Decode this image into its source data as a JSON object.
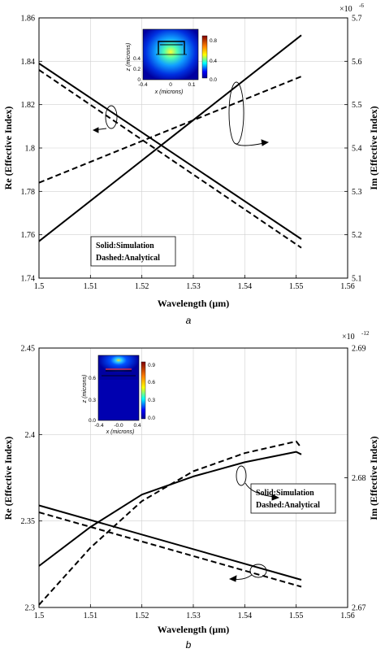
{
  "chart_data": [
    {
      "type": "line",
      "panel_caption": "a",
      "xlabel": "Wavelength (μm)",
      "ylabel": "Re (Effective Index)",
      "y2label": "Im (Effective Index)",
      "y2_exponent_base": "×10",
      "y2_exponent": "-6",
      "xlim": [
        1.5,
        1.56
      ],
      "ylim": [
        1.74,
        1.86
      ],
      "y2lim": [
        5.1,
        5.7
      ],
      "xticks": [
        "1.5",
        "1.51",
        "1.52",
        "1.53",
        "1.54",
        "1.55",
        "1.56"
      ],
      "yticks": [
        "1.74",
        "1.76",
        "1.78",
        "1.8",
        "1.82",
        "1.84",
        "1.86"
      ],
      "y2ticks": [
        "5.1",
        "5.2",
        "5.3",
        "5.4",
        "5.5",
        "5.6",
        "5.7"
      ],
      "grid": true,
      "legend": {
        "placement": "lower-left",
        "lines": [
          "Solid:Simulation",
          "Dashed:Analytical"
        ]
      },
      "series": [
        {
          "style": "solid",
          "axis": "left",
          "x": [
            1.5,
            1.551
          ],
          "y": [
            1.839,
            1.758
          ]
        },
        {
          "style": "dashed",
          "axis": "left",
          "x": [
            1.5,
            1.551
          ],
          "y": [
            1.836,
            1.754
          ]
        },
        {
          "style": "solid",
          "axis": "right",
          "x": [
            1.5,
            1.551
          ],
          "y": [
            5.185,
            5.66
          ]
        },
        {
          "style": "dashed",
          "axis": "right",
          "x": [
            1.5,
            1.551
          ],
          "y": [
            5.32,
            5.565
          ]
        }
      ],
      "inset": {
        "placement": "top-center",
        "xlabel": "x (microns)",
        "ylabel": "z (microns)",
        "xticks": [
          "-0.4",
          "0",
          "0.1"
        ],
        "yticks": [
          "0",
          "0.2",
          "0.4"
        ],
        "colorbar_ticks": [
          "0.8",
          "0.4",
          "0.0"
        ]
      }
    },
    {
      "type": "line",
      "panel_caption": "b",
      "xlabel": "Wavelength (μm)",
      "ylabel": "Re (Effective Index)",
      "y2label": "Im (Effective Index)",
      "y2_exponent_base": "×10",
      "y2_exponent": "-12",
      "xlim": [
        1.5,
        1.56
      ],
      "ylim": [
        2.3,
        2.45
      ],
      "y2lim": [
        2.67,
        2.69
      ],
      "xticks": [
        "1.5",
        "1.51",
        "1.52",
        "1.53",
        "1.54",
        "1.55",
        "1.56"
      ],
      "yticks": [
        "2.3",
        "2.35",
        "2.4",
        "2.45"
      ],
      "y2ticks": [
        "2.67",
        "2.68",
        "2.69"
      ],
      "grid": true,
      "legend": {
        "placement": "center-right",
        "lines": [
          "Solid:Simulation",
          "Dashed:Analytical"
        ]
      },
      "series": [
        {
          "style": "solid",
          "axis": "left",
          "x": [
            1.5,
            1.551
          ],
          "y": [
            2.359,
            2.316
          ]
        },
        {
          "style": "dashed",
          "axis": "left",
          "x": [
            1.5,
            1.551
          ],
          "y": [
            2.355,
            2.312
          ]
        },
        {
          "style": "solid",
          "axis": "right",
          "x": [
            1.5,
            1.51,
            1.52,
            1.53,
            1.54,
            1.55,
            1.551
          ],
          "y": [
            2.6732,
            2.6762,
            2.6787,
            2.6801,
            2.6812,
            2.682,
            2.6818
          ]
        },
        {
          "style": "dashed",
          "axis": "right",
          "x": [
            1.5,
            1.51,
            1.52,
            1.53,
            1.54,
            1.55,
            1.551
          ],
          "y": [
            2.6702,
            2.6746,
            2.6782,
            2.6805,
            2.6819,
            2.6828,
            2.6823
          ]
        }
      ],
      "inset": {
        "placement": "top-left",
        "xlabel": "x (microns)",
        "ylabel": "z (microns)",
        "xticks": [
          "-0.4",
          "-0.0",
          "0.4"
        ],
        "yticks": [
          "0.6",
          "0.3",
          "0.0"
        ],
        "colorbar_ticks": [
          "0.9",
          "0.6",
          "0.3",
          "0.0"
        ]
      }
    }
  ]
}
